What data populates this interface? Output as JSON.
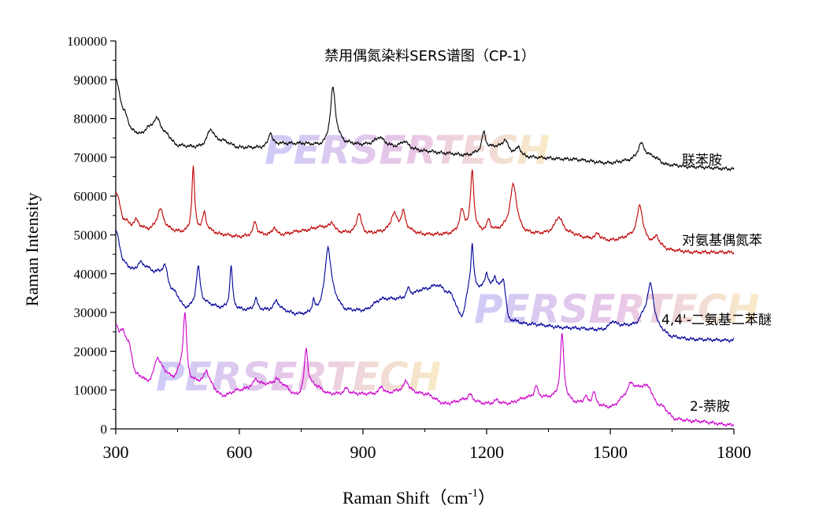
{
  "chart_data": {
    "type": "line",
    "title": "禁用偶氮染料SERS谱图（CP-1）",
    "xlabel_main": "Raman Shift（cm",
    "xlabel_sup": "-1",
    "xlabel_end": "）",
    "ylabel": "Raman Intensity",
    "xlim": [
      300,
      1800
    ],
    "ylim": [
      0,
      100000
    ],
    "xticks": [
      300,
      600,
      900,
      1200,
      1500,
      1800
    ],
    "yticks": [
      0,
      10000,
      20000,
      30000,
      40000,
      50000,
      60000,
      70000,
      80000,
      90000,
      100000
    ],
    "watermark": "PERSERTECH",
    "series": [
      {
        "name": "联苯胺",
        "color": "#000000",
        "base": [
          [
            300,
            90000
          ],
          [
            320,
            82000
          ],
          [
            340,
            77000
          ],
          [
            360,
            76000
          ],
          [
            380,
            77500
          ],
          [
            400,
            78500
          ],
          [
            420,
            76000
          ],
          [
            450,
            73000
          ],
          [
            500,
            72500
          ],
          [
            560,
            74000
          ],
          [
            600,
            72500
          ],
          [
            650,
            72500
          ],
          [
            700,
            73500
          ],
          [
            750,
            73500
          ],
          [
            800,
            73000
          ],
          [
            830,
            75000
          ],
          [
            860,
            73500
          ],
          [
            900,
            73000
          ],
          [
            950,
            72500
          ],
          [
            1000,
            72000
          ],
          [
            1050,
            71500
          ],
          [
            1100,
            71000
          ],
          [
            1150,
            70500
          ],
          [
            1180,
            71000
          ],
          [
            1220,
            72500
          ],
          [
            1260,
            71000
          ],
          [
            1300,
            70000
          ],
          [
            1400,
            69500
          ],
          [
            1500,
            68500
          ],
          [
            1540,
            69000
          ],
          [
            1600,
            70000
          ],
          [
            1640,
            68000
          ],
          [
            1700,
            67500
          ],
          [
            1800,
            67000
          ]
        ],
        "peaks": [
          [
            400,
            1500,
            12
          ],
          [
            530,
            4000,
            10
          ],
          [
            675,
            3500,
            5
          ],
          [
            827,
            13000,
            7
          ],
          [
            940,
            2500,
            15
          ],
          [
            1000,
            2000,
            12
          ],
          [
            1193,
            5000,
            6
          ],
          [
            1245,
            3000,
            8
          ],
          [
            1278,
            2000,
            6
          ],
          [
            1575,
            4000,
            10
          ]
        ]
      },
      {
        "name": "对氨基偶氮苯",
        "color": "#c00000",
        "base": [
          [
            300,
            61000
          ],
          [
            320,
            54000
          ],
          [
            340,
            52000
          ],
          [
            360,
            51500
          ],
          [
            380,
            51000
          ],
          [
            420,
            51000
          ],
          [
            460,
            50500
          ],
          [
            520,
            51000
          ],
          [
            560,
            50000
          ],
          [
            600,
            49500
          ],
          [
            650,
            50000
          ],
          [
            700,
            50000
          ],
          [
            750,
            51000
          ],
          [
            800,
            52000
          ],
          [
            850,
            50500
          ],
          [
            900,
            50000
          ],
          [
            950,
            50500
          ],
          [
            1000,
            51000
          ],
          [
            1050,
            50000
          ],
          [
            1100,
            50000
          ],
          [
            1150,
            50500
          ],
          [
            1200,
            50500
          ],
          [
            1250,
            51000
          ],
          [
            1300,
            50000
          ],
          [
            1350,
            50000
          ],
          [
            1400,
            50000
          ],
          [
            1450,
            49000
          ],
          [
            1500,
            48500
          ],
          [
            1560,
            49500
          ],
          [
            1600,
            48000
          ],
          [
            1650,
            46000
          ],
          [
            1700,
            45500
          ],
          [
            1800,
            45500
          ]
        ],
        "peaks": [
          [
            350,
            2000,
            8
          ],
          [
            408,
            5500,
            10
          ],
          [
            488,
            16500,
            4
          ],
          [
            515,
            4500,
            5
          ],
          [
            638,
            3500,
            5
          ],
          [
            685,
            2000,
            5
          ],
          [
            825,
            2000,
            6
          ],
          [
            890,
            5500,
            7
          ],
          [
            975,
            4500,
            10
          ],
          [
            998,
            4500,
            6
          ],
          [
            1140,
            5500,
            7
          ],
          [
            1165,
            15500,
            5
          ],
          [
            1205,
            3000,
            5
          ],
          [
            1265,
            12000,
            10
          ],
          [
            1375,
            4500,
            12
          ],
          [
            1470,
            1500,
            6
          ],
          [
            1572,
            8500,
            8
          ],
          [
            1613,
            2000,
            5
          ]
        ]
      },
      {
        "name": "4,4'-二氨基二苯醚",
        "color": "#000099",
        "base": [
          [
            300,
            51000
          ],
          [
            320,
            43000
          ],
          [
            340,
            41000
          ],
          [
            370,
            41500
          ],
          [
            400,
            40000
          ],
          [
            440,
            35000
          ],
          [
            470,
            31000
          ],
          [
            520,
            32000
          ],
          [
            560,
            31000
          ],
          [
            620,
            30500
          ],
          [
            660,
            30500
          ],
          [
            700,
            30500
          ],
          [
            740,
            29500
          ],
          [
            780,
            29500
          ],
          [
            820,
            34000
          ],
          [
            860,
            30500
          ],
          [
            900,
            30500
          ],
          [
            950,
            33500
          ],
          [
            1000,
            33500
          ],
          [
            1050,
            36000
          ],
          [
            1080,
            37000
          ],
          [
            1110,
            35000
          ],
          [
            1140,
            29000
          ],
          [
            1160,
            36000
          ],
          [
            1180,
            36000
          ],
          [
            1220,
            36000
          ],
          [
            1240,
            36000
          ],
          [
            1255,
            28000
          ],
          [
            1300,
            27000
          ],
          [
            1400,
            26000
          ],
          [
            1480,
            25500
          ],
          [
            1520,
            26500
          ],
          [
            1560,
            26500
          ],
          [
            1580,
            28000
          ],
          [
            1620,
            25000
          ],
          [
            1650,
            23500
          ],
          [
            1700,
            23000
          ],
          [
            1800,
            22800
          ]
        ],
        "peaks": [
          [
            360,
            1500,
            8
          ],
          [
            420,
            4500,
            8
          ],
          [
            500,
            10000,
            6
          ],
          [
            580,
            11000,
            4
          ],
          [
            640,
            3000,
            5
          ],
          [
            690,
            2500,
            7
          ],
          [
            780,
            3500,
            4
          ],
          [
            815,
            13000,
            8
          ],
          [
            1010,
            2500,
            6
          ],
          [
            1165,
            11500,
            4
          ],
          [
            1200,
            4000,
            5
          ],
          [
            1220,
            3000,
            5
          ],
          [
            1240,
            2500,
            5
          ],
          [
            1505,
            1500,
            8
          ],
          [
            1598,
            10500,
            10
          ]
        ]
      },
      {
        "name": "2-萘胺",
        "color": "#cc00cc",
        "base": [
          [
            300,
            27000
          ],
          [
            310,
            24000
          ],
          [
            330,
            22000
          ],
          [
            350,
            14000
          ],
          [
            380,
            12000
          ],
          [
            410,
            15000
          ],
          [
            440,
            13000
          ],
          [
            460,
            15000
          ],
          [
            480,
            12000
          ],
          [
            520,
            12000
          ],
          [
            560,
            8500
          ],
          [
            600,
            10000
          ],
          [
            650,
            11500
          ],
          [
            700,
            11500
          ],
          [
            740,
            8500
          ],
          [
            780,
            11000
          ],
          [
            820,
            9000
          ],
          [
            860,
            9000
          ],
          [
            900,
            9000
          ],
          [
            950,
            9000
          ],
          [
            1000,
            10000
          ],
          [
            1050,
            9000
          ],
          [
            1100,
            6500
          ],
          [
            1150,
            7500
          ],
          [
            1200,
            6500
          ],
          [
            1250,
            6500
          ],
          [
            1300,
            8000
          ],
          [
            1340,
            8000
          ],
          [
            1380,
            8000
          ],
          [
            1420,
            6500
          ],
          [
            1460,
            6000
          ],
          [
            1500,
            5500
          ],
          [
            1540,
            8000
          ],
          [
            1580,
            10500
          ],
          [
            1620,
            6000
          ],
          [
            1660,
            2500
          ],
          [
            1700,
            2000
          ],
          [
            1800,
            1000
          ]
        ],
        "peaks": [
          [
            318,
            2500,
            6
          ],
          [
            400,
            4000,
            8
          ],
          [
            468,
            16000,
            5
          ],
          [
            520,
            3000,
            6
          ],
          [
            640,
            1500,
            6
          ],
          [
            690,
            1500,
            6
          ],
          [
            762,
            11000,
            5
          ],
          [
            860,
            1500,
            6
          ],
          [
            945,
            2000,
            6
          ],
          [
            1005,
            2500,
            6
          ],
          [
            1160,
            1500,
            6
          ],
          [
            1225,
            1000,
            6
          ],
          [
            1320,
            3000,
            5
          ],
          [
            1383,
            16500,
            5
          ],
          [
            1440,
            2000,
            5
          ],
          [
            1460,
            3500,
            5
          ],
          [
            1550,
            3500,
            10
          ],
          [
            1595,
            1500,
            8
          ]
        ]
      }
    ],
    "series_labels": [
      "联苯胺",
      "对氨基偶氮苯",
      "4,4'-二氨基二苯醚",
      "2-萘胺"
    ]
  }
}
